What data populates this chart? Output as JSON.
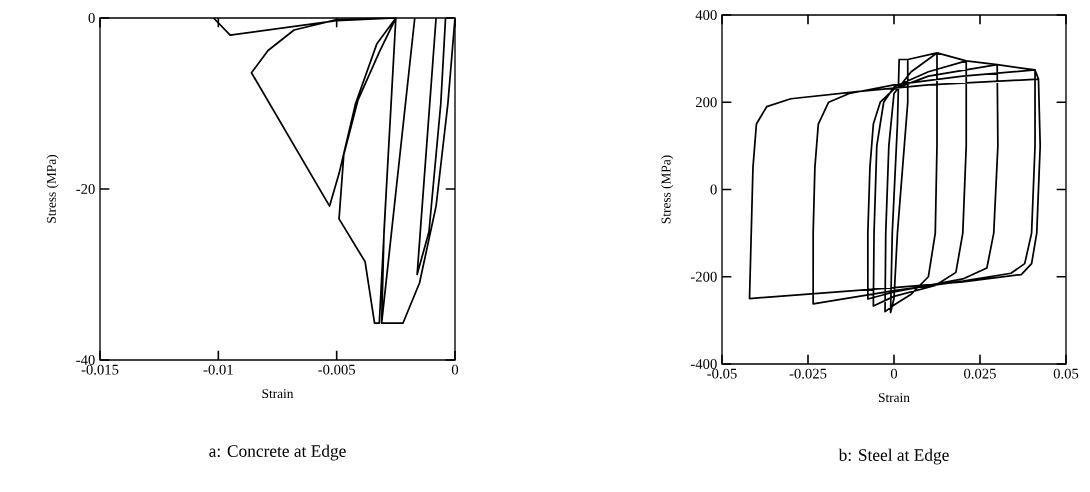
{
  "chart_data": [
    {
      "type": "line",
      "xlabel": "Strain",
      "ylabel": "Stress (MPa)",
      "annotations": [
        "a: Concrete at Edge"
      ],
      "xlim": [
        -0.015,
        0
      ],
      "ylim": [
        -40,
        0
      ],
      "xticks": [
        -0.015,
        -0.01,
        -0.005,
        0
      ],
      "yticks": [
        -40,
        -20,
        0
      ],
      "series": [
        {
          "color": "#000000",
          "x": [
            -0.0102,
            -0.0095,
            -0.005,
            -0.0025,
            -0.005,
            -0.0068,
            -0.0079,
            -0.0086,
            -0.0053,
            -0.0049,
            -0.0042,
            -0.0033,
            -0.0025,
            -0.0032,
            -0.0041,
            -0.0047,
            -0.0049,
            -0.0038,
            -0.0034,
            -0.0032,
            -0.0029,
            -0.0025,
            -0.0027,
            -0.003,
            -0.0031,
            -0.0022,
            -0.0015,
            -0.0008,
            -0.0003,
            0,
            null,
            -0.0017,
            -0.0031,
            null,
            -0.0008,
            -0.0016,
            -0.0011,
            -0.0006,
            -0.0004
          ],
          "values": [
            0,
            -2.0,
            -0.3,
            0,
            -0.2,
            -1.4,
            -3.8,
            -6.4,
            -22,
            -18.2,
            -10,
            -3,
            0,
            -4,
            -9.6,
            -16,
            -23.5,
            -28.5,
            -35.7,
            -35.7,
            -20,
            0,
            -10,
            -25,
            -35.7,
            -35.7,
            -31,
            -22,
            -10,
            0,
            null,
            0,
            -35.7,
            null,
            0,
            -30,
            -25,
            -10,
            0
          ]
        }
      ]
    },
    {
      "type": "line",
      "xlabel": "Strain",
      "ylabel": "Stress (MPa)",
      "annotations": [
        "b: Steel at Edge"
      ],
      "xlim": [
        -0.05,
        0.05
      ],
      "ylim": [
        -400,
        400
      ],
      "xticks": [
        -0.05,
        -0.025,
        0,
        0.025,
        0.05
      ],
      "yticks": [
        -400,
        -200,
        0,
        200,
        400
      ],
      "series": [
        {
          "color": "#000000",
          "x": [
            0.0015,
            0.004,
            0.004,
            0.003,
            0.001,
            0,
            -0.001,
            -0.0005,
            0.001,
            0.0015,
            0.004,
            0.0125,
            0.0125,
            0.012,
            0.01,
            0.005,
            0,
            -0.0026,
            -0.0024,
            -0.0015,
            0,
            0.005,
            0.0125,
            0.021,
            0.021,
            0.02,
            0.018,
            0.012,
            0,
            -0.006,
            -0.0058,
            -0.005,
            -0.003,
            0,
            0.01,
            0.021,
            0.03,
            0.0302,
            0.029,
            0.027,
            0.02,
            0.01,
            0,
            -0.0076,
            -0.0076,
            -0.007,
            -0.006,
            -0.004,
            0,
            0.01,
            0.03,
            0.041,
            0.041,
            0.04,
            0.038,
            0.034,
            0.02,
            0,
            -0.0235,
            -0.0235,
            -0.023,
            -0.022,
            -0.019,
            -0.013,
            0,
            0.02,
            0.041,
            0.042,
            0.0425,
            0.0415,
            0.04,
            0.037,
            0.02,
            0,
            -0.042,
            -0.0415,
            -0.041,
            -0.04,
            -0.037,
            -0.03,
            -0.01,
            0.01,
            0.042
          ],
          "values": [
            298,
            298,
            200,
            100,
            -100,
            -250,
            -282,
            -100,
            150,
            298,
            298,
            313,
            100,
            -100,
            -200,
            -240,
            -265,
            -280,
            -100,
            100,
            220,
            270,
            313,
            295,
            100,
            -100,
            -190,
            -220,
            -245,
            -267,
            -100,
            100,
            200,
            235,
            270,
            295,
            286,
            100,
            -100,
            -180,
            -205,
            -220,
            -235,
            -251,
            -100,
            50,
            150,
            200,
            230,
            260,
            286,
            274,
            100,
            -100,
            -170,
            -192,
            -210,
            -232,
            -262,
            -100,
            50,
            150,
            200,
            220,
            240,
            260,
            274,
            253,
            100,
            -100,
            -170,
            -195,
            -212,
            -225,
            -250,
            -100,
            50,
            150,
            190,
            208,
            225,
            240,
            253
          ]
        }
      ]
    }
  ]
}
